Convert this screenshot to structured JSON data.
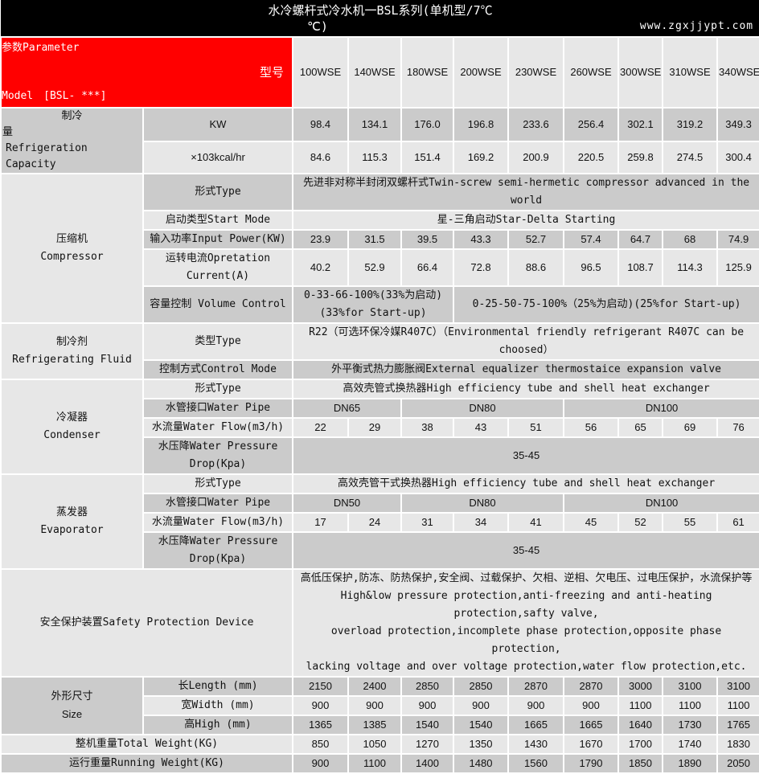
{
  "title": "水冷螺杆式冷水机一BSL系列(单机型/7℃",
  "title_unit": "℃)",
  "header": {
    "parameter": "参数Parameter",
    "model_cn": "型号",
    "model": "Model　[BSL- ***]",
    "models": [
      "100WSE",
      "140WSE",
      "180WSE",
      "200WSE",
      "230WSE",
      "260WSE",
      "300WSE",
      "310WSE",
      "340WSE"
    ]
  },
  "capacity": {
    "label_cn": "制冷",
    "label_cn2": "量",
    "label_en": "Refrigeration Capacity",
    "kw": {
      "unit": "KW",
      "values": [
        "98.4",
        "134.1",
        "176.0",
        "196.8",
        "233.6",
        "256.4",
        "302.1",
        "319.2",
        "349.3"
      ]
    },
    "kcal": {
      "unit": "×103kcal/hr",
      "values": [
        "84.6",
        "115.3",
        "151.4",
        "169.2",
        "200.9",
        "220.5",
        "259.8",
        "274.5",
        "300.4"
      ]
    }
  },
  "compressor": {
    "label_cn": "压缩机",
    "label_en": "Compressor",
    "type": {
      "label": "形式Type",
      "value": "先进非对称半封闭双螺杆式Twin-screw semi-hermetic compressor advanced in the world"
    },
    "start": {
      "label": "启动类型Start Mode",
      "value": "星-三角启动Star-Delta Starting"
    },
    "power": {
      "label": "输入功率Input Power(KW)",
      "values": [
        "23.9",
        "31.5",
        "39.5",
        "43.3",
        "52.7",
        "57.4",
        "64.7",
        "68",
        "74.9"
      ]
    },
    "current": {
      "label": "运转电流Opretation Current(A)",
      "values": [
        "40.2",
        "52.9",
        "66.4",
        "72.8",
        "88.6",
        "96.5",
        "108.7",
        "114.3",
        "125.9"
      ]
    },
    "volume": {
      "label": "容量控制 Volume Control",
      "values": [
        "0-33-66-100%(33%为启动)(33%for Start-up)",
        "0-25-50-75-100%（25%为启动)(25%for Start-up)"
      ]
    }
  },
  "refrigerant": {
    "label_cn": "制冷剂",
    "label_en": "Refrigerating Fluid",
    "type": {
      "label": "类型Type",
      "value": "R22（可选环保冷媒R407C）（Environmental friendly refrigerant R407C can be choosed）"
    },
    "control": {
      "label": "控制方式Control Mode",
      "value": "外平衡式热力膨胀阀External equalizer thermostaice expansion valve"
    }
  },
  "condenser": {
    "label_cn": "冷凝器",
    "label_en": "Condenser",
    "type": {
      "label": "形式Type",
      "value": "高效壳管式换热器High efficiency tube and shell heat exchanger"
    },
    "pipe": {
      "label": "水管接口Water Pipe",
      "values": [
        "DN65",
        "DN80",
        "DN100"
      ]
    },
    "flow": {
      "label": "水流量Water Flow(m3/h)",
      "values": [
        "22",
        "29",
        "38",
        "43",
        "51",
        "56",
        "65",
        "69",
        "76"
      ]
    },
    "drop": {
      "label": "水压降Water Pressure Drop(Kpa)",
      "value": "35-45"
    }
  },
  "evaporator": {
    "label_cn": "蒸发器",
    "label_en": "Evaporator",
    "type": {
      "label": "形式Type",
      "value": "高效壳管干式换热器High efficiency tube and shell heat exchanger"
    },
    "pipe": {
      "label": "水管接口Water Pipe",
      "values": [
        "DN50",
        "DN80",
        "DN100"
      ]
    },
    "flow": {
      "label": "水流量Water Flow(m3/h)",
      "values": [
        "17",
        "24",
        "31",
        "34",
        "41",
        "45",
        "52",
        "55",
        "61"
      ]
    },
    "drop": {
      "label": "水压降Water Pressure Drop(Kpa)",
      "value": "35-45"
    }
  },
  "safety": {
    "label": "安全保护装置Safety Protection Device",
    "lines": [
      "高低压保护,防冻、防热保护,安全阀、过载保护、欠相、逆相、欠电压、过电压保护，水流保护等",
      "High&low pressure protection,anti-freezing and anti-heating protection,safty valve,",
      "overload protection,incomplete phase protection,opposite phase protection,",
      "lacking voltage and over voltage protection,water flow protection,etc."
    ]
  },
  "size": {
    "label_cn": "外形尺寸",
    "label_en": "Size",
    "length": {
      "label": "长Length (mm)",
      "values": [
        "2150",
        "2400",
        "2850",
        "2850",
        "2870",
        "2870",
        "3000",
        "3100",
        "3100"
      ]
    },
    "width": {
      "label": "宽Width (mm)",
      "values": [
        "900",
        "900",
        "900",
        "900",
        "900",
        "900",
        "1100",
        "1100",
        "1100"
      ]
    },
    "high": {
      "label": "高High (mm)",
      "values": [
        "1365",
        "1385",
        "1540",
        "1540",
        "1665",
        "1665",
        "1640",
        "1730",
        "1765"
      ]
    }
  },
  "total_weight": {
    "label": "整机重量Total Weight(KG)",
    "values": [
      "850",
      "1050",
      "1270",
      "1350",
      "1430",
      "1670",
      "1700",
      "1740",
      "1830"
    ]
  },
  "running_weight": {
    "label": "运行重量Running Weight(KG)",
    "values": [
      "900",
      "1100",
      "1400",
      "1480",
      "1560",
      "1790",
      "1850",
      "1890",
      "2050"
    ]
  },
  "watermark": "www.zgxjjypt.com"
}
